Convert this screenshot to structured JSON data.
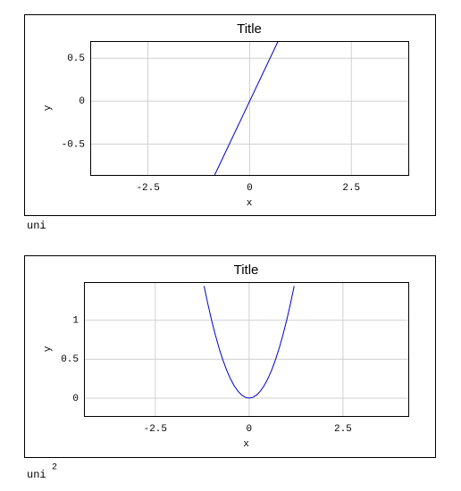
{
  "chart_data": [
    {
      "type": "line",
      "title": "Title",
      "xlabel": "x",
      "ylabel": "y",
      "caption": "uni",
      "x": [
        -0.86,
        0.7
      ],
      "values": [
        -0.86,
        0.7
      ],
      "color": "#0000cc",
      "xlim": [
        -3.92,
        3.9
      ],
      "ylim": [
        -0.86,
        0.7
      ],
      "xticks": [
        -2.5,
        0,
        2.5
      ],
      "yticks": [
        -0.5,
        0,
        0.5
      ],
      "grid": true
    },
    {
      "type": "line",
      "title": "Title",
      "xlabel": "x",
      "ylabel": "y",
      "caption": "uni",
      "caption_sup": "2",
      "x": [
        -1.2,
        -1.1,
        -1,
        -0.9,
        -0.8,
        -0.7,
        -0.6,
        -0.5,
        -0.4,
        -0.3,
        -0.2,
        -0.1,
        0,
        0.1,
        0.2,
        0.3,
        0.4,
        0.5,
        0.6,
        0.7,
        0.8,
        0.9,
        1,
        1.1,
        1.2
      ],
      "values": [
        1.44,
        1.21,
        1,
        0.81,
        0.64,
        0.49,
        0.36,
        0.25,
        0.16,
        0.09,
        0.04,
        0.01,
        0,
        0.01,
        0.04,
        0.09,
        0.16,
        0.25,
        0.36,
        0.49,
        0.64,
        0.81,
        1,
        1.21,
        1.44
      ],
      "color": "#0000cc",
      "xlim": [
        -4.4,
        4.24
      ],
      "ylim": [
        -0.23,
        1.49
      ],
      "xticks": [
        -2.5,
        0,
        2.5
      ],
      "yticks": [
        0,
        0.5,
        1
      ],
      "grid": true
    }
  ]
}
